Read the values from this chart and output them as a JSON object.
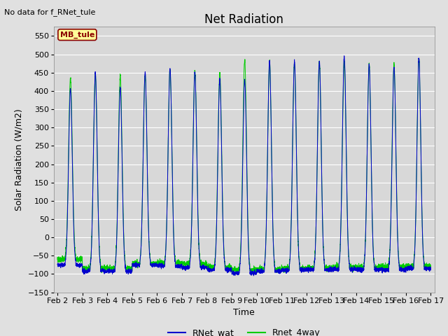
{
  "title": "Net Radiation",
  "top_left_text": "No data for f_RNet_tule",
  "annotation_box": "MB_tule",
  "ylabel": "Solar Radiation (W/m2)",
  "xlabel": "Time",
  "ylim": [
    -150,
    575
  ],
  "yticks": [
    -150,
    -100,
    -50,
    0,
    50,
    100,
    150,
    200,
    250,
    300,
    350,
    400,
    450,
    500,
    550
  ],
  "xtick_labels": [
    "Feb 2",
    "Feb 3",
    "Feb 4",
    "Feb 5",
    "Feb 6",
    "Feb 7",
    "Feb 8",
    "Feb 9",
    "Feb 10",
    "Feb 11",
    "Feb 12",
    "Feb 13",
    "Feb 14",
    "Feb 15",
    "Feb 16",
    "Feb 17"
  ],
  "xtick_positions": [
    2,
    3,
    4,
    5,
    6,
    7,
    8,
    9,
    10,
    11,
    12,
    13,
    14,
    15,
    16,
    17
  ],
  "blue_color": "#0000CC",
  "green_color": "#00CC00",
  "fig_bg_color": "#E0E0E0",
  "plot_bg_color": "#D8D8D8",
  "legend_labels": [
    "RNet_wat",
    "Rnet_4way"
  ],
  "title_fontsize": 12,
  "axis_label_fontsize": 9,
  "tick_fontsize": 8,
  "annotation_box_color": "#FFFF99",
  "annotation_box_border": "#8B0000",
  "annotation_text_color": "#8B0000",
  "blue_peaks": [
    405,
    450,
    408,
    450,
    462,
    450,
    432,
    430,
    480,
    480,
    482,
    495,
    472,
    465,
    492
  ],
  "green_peaks": [
    435,
    445,
    443,
    443,
    460,
    455,
    450,
    485,
    480,
    477,
    480,
    478,
    472,
    470,
    488
  ],
  "blue_troughs": [
    -75,
    -100,
    -105,
    -80,
    -80,
    -85,
    -95,
    -105,
    -100,
    -95,
    -95,
    -92,
    -95,
    -92,
    -88
  ],
  "green_troughs": [
    -40,
    -120,
    -120,
    -77,
    -72,
    -82,
    -88,
    -128,
    -118,
    -105,
    -105,
    -90,
    -88,
    -88,
    -82
  ],
  "night_blue": [
    -75,
    -92,
    -92,
    -75,
    -78,
    -82,
    -88,
    -97,
    -92,
    -90,
    -88,
    -87,
    -88,
    -88,
    -85
  ],
  "night_green": [
    -60,
    -85,
    -85,
    -72,
    -70,
    -72,
    -80,
    -88,
    -88,
    -85,
    -83,
    -82,
    -82,
    -80,
    -78
  ]
}
